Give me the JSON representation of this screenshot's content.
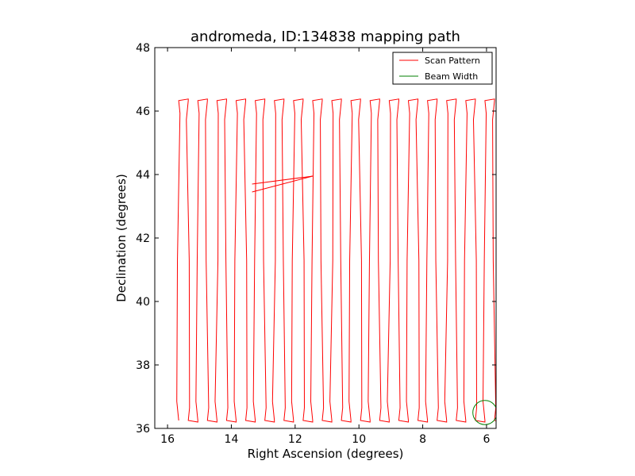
{
  "chart_data": {
    "type": "line",
    "title": "andromeda, ID:134838 mapping path",
    "xlabel": "Right Ascension (degrees)",
    "ylabel": "Declination (degrees)",
    "xlim": [
      16.4,
      5.7
    ],
    "ylim": [
      36,
      48
    ],
    "xticks": [
      16,
      14,
      12,
      10,
      8,
      6
    ],
    "yticks": [
      36,
      38,
      40,
      42,
      44,
      46,
      48
    ],
    "grid": false,
    "legend_position": "top-right",
    "series": [
      {
        "name": "Scan Pattern",
        "color": "#ff0000",
        "scan": {
          "ra_start": 15.65,
          "ra_step": 0.3,
          "n_legs": 34,
          "dec_low": 36.25,
          "dec_high": 46.33
        },
        "extra_path": [
          [
            13.35,
            43.7
          ],
          [
            11.45,
            43.95
          ],
          [
            13.35,
            43.45
          ]
        ]
      },
      {
        "name": "Beam Width",
        "color": "#007f00",
        "shape": "circle",
        "center": [
          6.05,
          36.5
        ],
        "radius": 0.38
      }
    ]
  }
}
